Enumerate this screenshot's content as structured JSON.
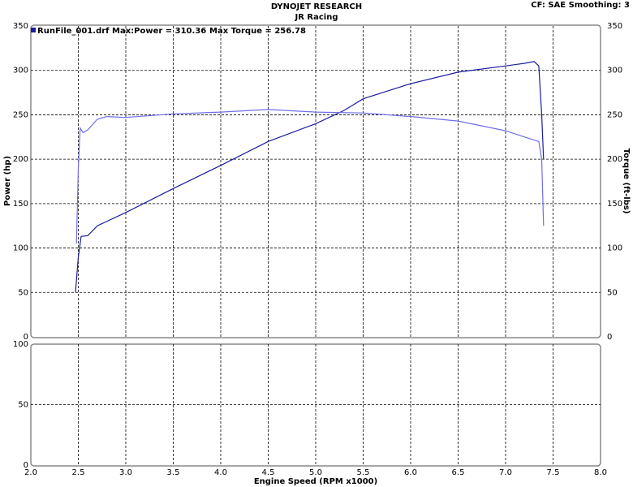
{
  "chart_data": [
    {
      "type": "line",
      "title": "DYNOJET RESEARCH",
      "subtitle": "JR Racing",
      "header_right": "CF: SAE  Smoothing: 3",
      "annotation": "RunFile_001.drf Max:Power = 310.36",
      "annotation2": "Max Torque = 256.78",
      "ylabel": "Power (hp)",
      "y2label": "Torque (ft-lbs)",
      "xlim": [
        2,
        8
      ],
      "xticks": [
        2.5,
        3,
        3.5,
        4,
        4.5,
        5,
        5.5,
        6,
        6.5,
        7,
        7.5
      ],
      "ylim": [
        0,
        350
      ],
      "yticks": [
        0,
        50,
        100,
        150,
        200,
        250,
        300,
        350
      ],
      "y2lim": [
        0,
        350
      ],
      "y2ticks": [
        0,
        50,
        100,
        150,
        200,
        250,
        300,
        350
      ],
      "grid": true,
      "series": [
        {
          "color": "#1c1c9e",
          "x": [
            2.47,
            2.5,
            2.53,
            2.6,
            2.7,
            3.0,
            3.5,
            4.0,
            4.5,
            5.0,
            5.3,
            5.5,
            6.0,
            6.5,
            7.0,
            7.2,
            7.3,
            7.35,
            7.38,
            7.4
          ],
          "values": [
            50,
            90,
            113,
            114,
            125,
            140,
            167,
            193,
            220,
            240,
            255,
            268,
            285,
            298,
            305,
            308,
            310,
            305,
            250,
            200
          ]
        },
        {
          "color": "#6e6ee6",
          "axis": "y2",
          "x": [
            2.48,
            2.5,
            2.52,
            2.55,
            2.6,
            2.7,
            2.8,
            3.0,
            3.5,
            4.0,
            4.5,
            5.0,
            5.5,
            6.0,
            6.5,
            7.0,
            7.2,
            7.35,
            7.38,
            7.4
          ],
          "values": [
            105,
            190,
            235,
            230,
            233,
            245,
            248,
            247,
            251,
            253,
            256,
            253,
            252,
            248,
            243,
            232,
            225,
            220,
            200,
            125
          ]
        }
      ]
    },
    {
      "type": "line",
      "xlabel": "Engine Speed (RPM x1000)",
      "xlim": [
        2,
        8
      ],
      "xticks": [
        {
          "value": 2,
          "label": "2.0"
        },
        2.5,
        {
          "value": 3,
          "label": "3.0"
        },
        3.5,
        {
          "value": 4,
          "label": "4.0"
        },
        4.5,
        {
          "value": 5,
          "label": "5.0"
        },
        5.5,
        {
          "value": 6,
          "label": "6.0"
        },
        6.5,
        {
          "value": 7,
          "label": "7.0"
        },
        7.5,
        {
          "value": 8,
          "label": "8.0"
        }
      ],
      "ylim": [
        0,
        100
      ],
      "yticks": [
        0,
        50,
        100
      ],
      "grid": true,
      "series": []
    }
  ]
}
